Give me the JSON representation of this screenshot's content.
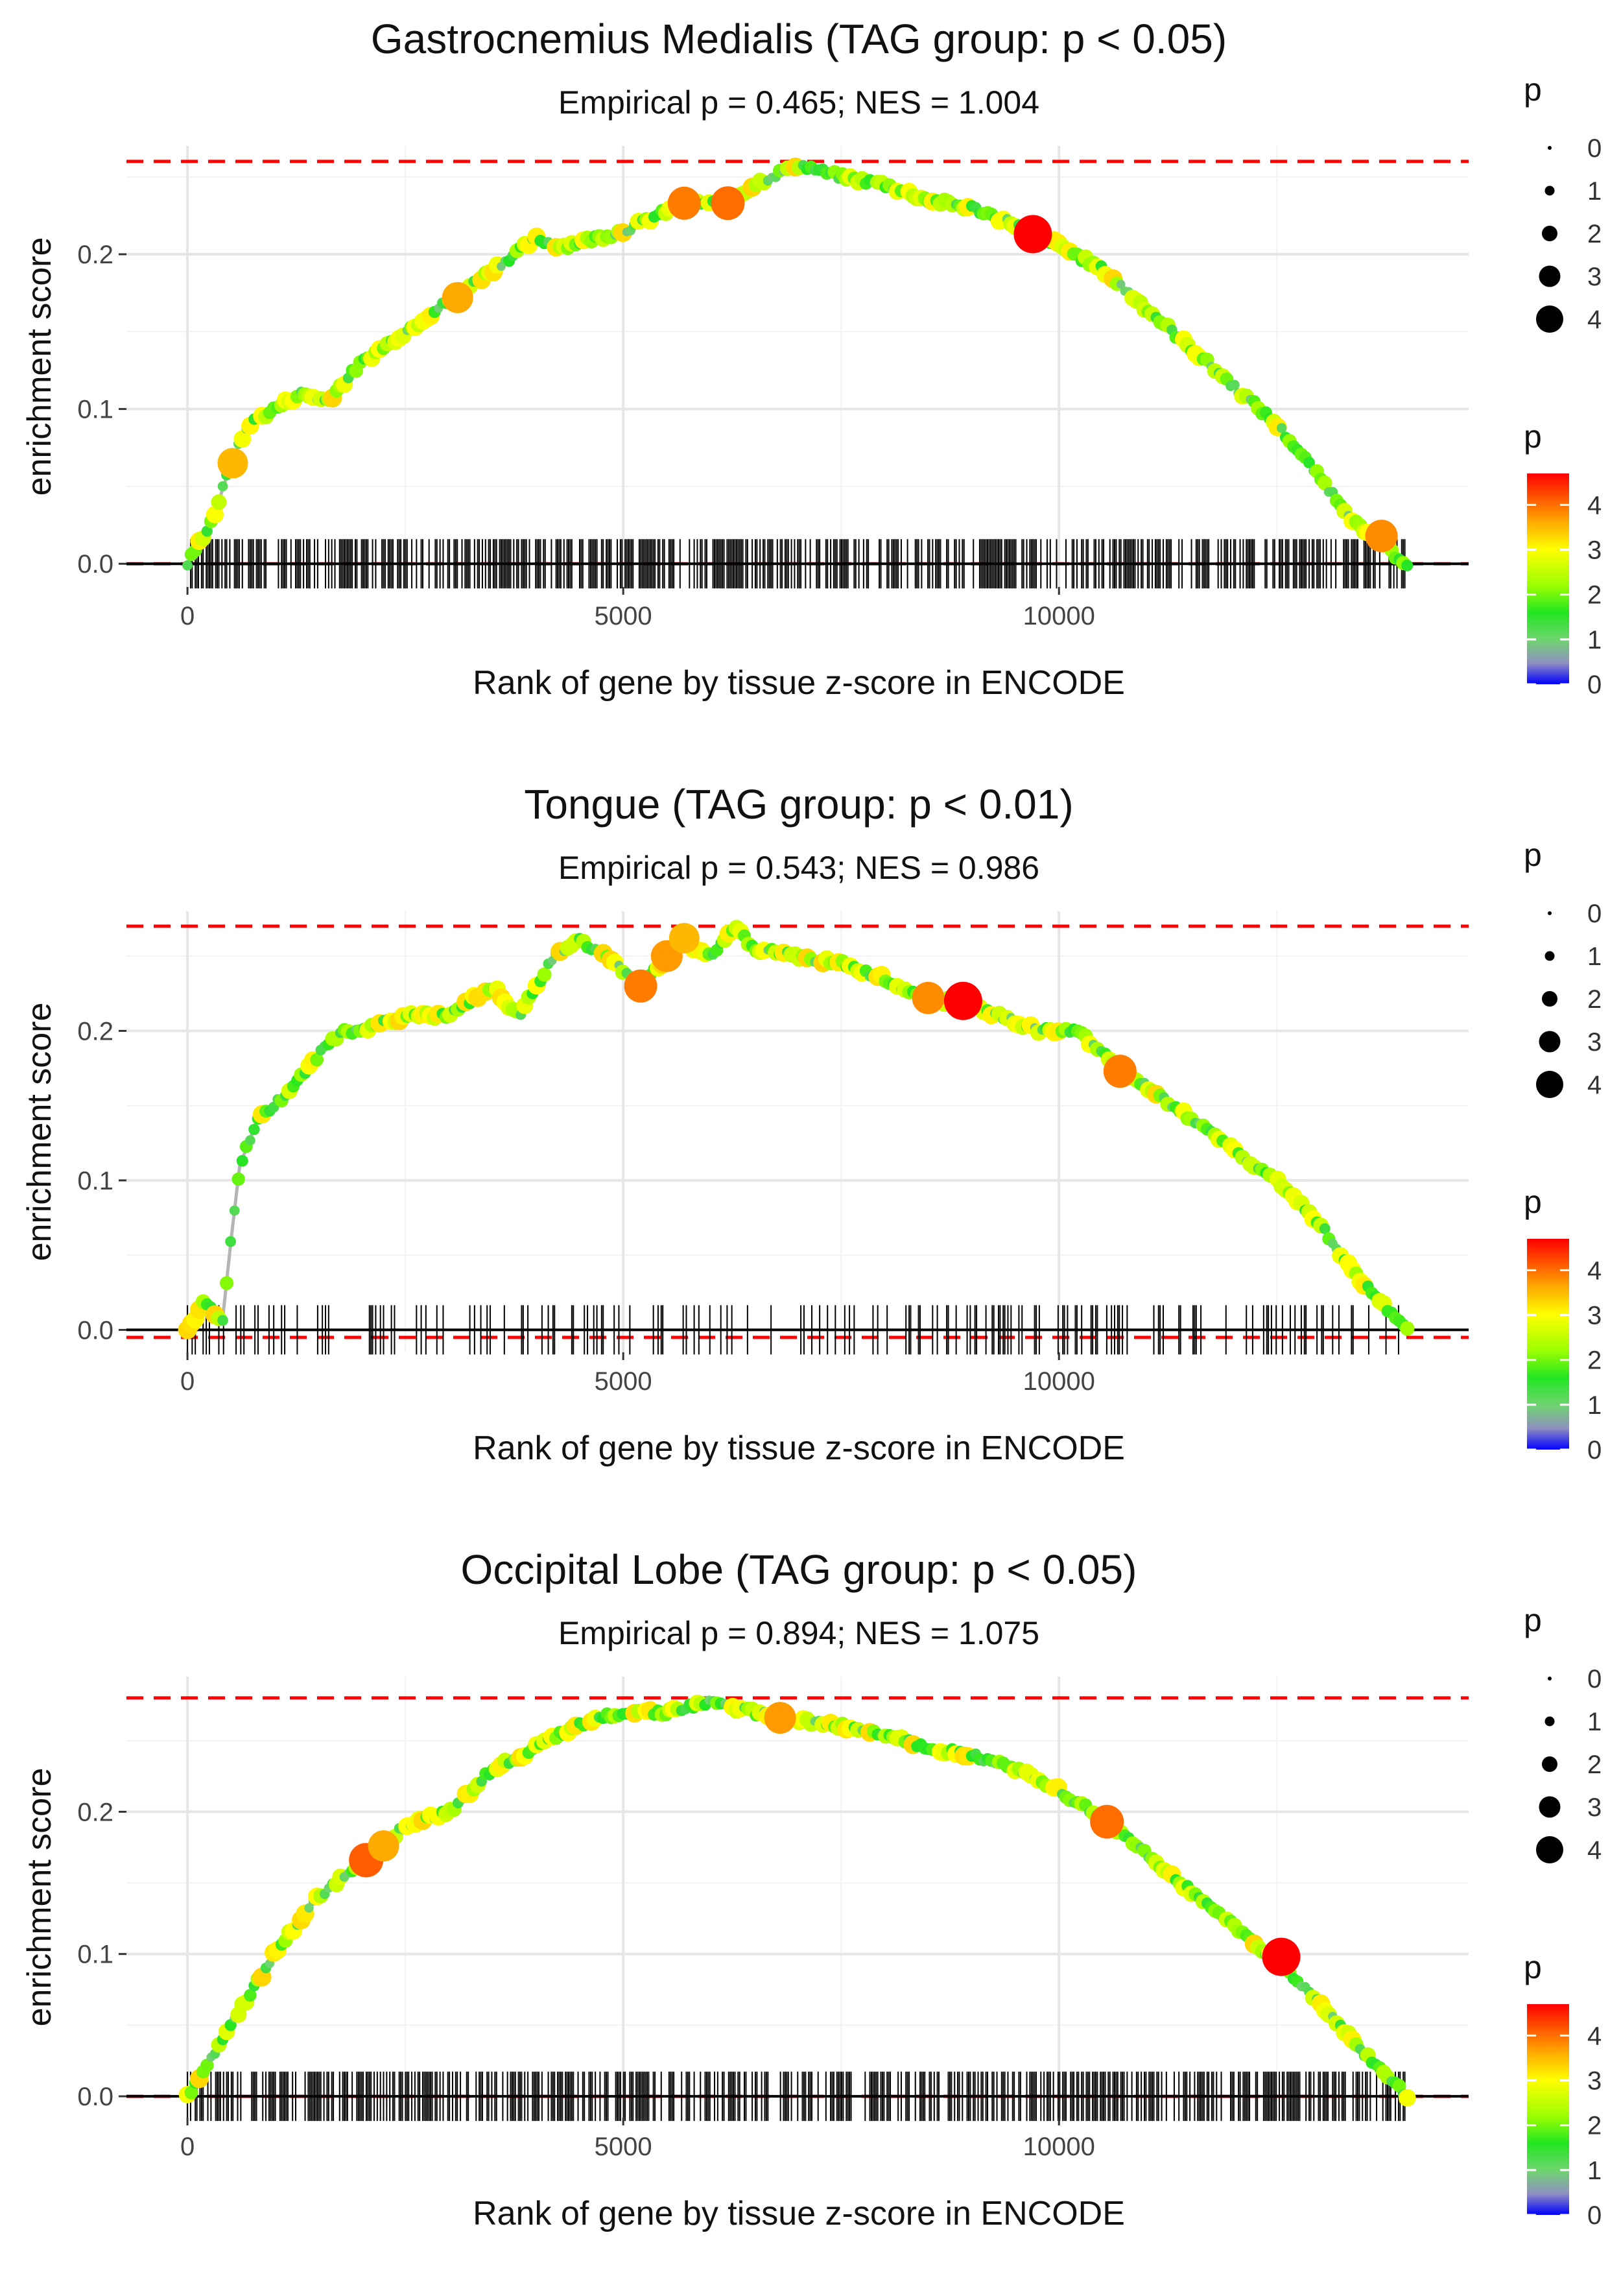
{
  "chart_data": [
    {
      "type": "line",
      "title": "Gastrocnemius Medialis (TAG group: p < 0.05)",
      "subtitle": "Empirical p = 0.465; NES = 1.004",
      "xlabel": "Rank of gene by tissue z-score in ENCODE",
      "ylabel": "enrichment score",
      "xlim": [
        -700,
        14700
      ],
      "ylim": [
        -0.015,
        0.27
      ],
      "x_ticks": [
        0,
        5000,
        10000
      ],
      "y_ticks": [
        0.0,
        0.1,
        0.2
      ],
      "x_tick_labels": [
        "0",
        "5000",
        "10000"
      ],
      "y_tick_labels": [
        "0.0",
        "0.1",
        "0.2"
      ],
      "max_es_line": 0.26,
      "min_es_line": 0.0,
      "rug_range": [
        0,
        14000
      ],
      "rug_density": 1,
      "x": [
        0,
        300,
        500,
        700,
        1000,
        1300,
        1600,
        2000,
        2500,
        3000,
        3500,
        4000,
        4300,
        5000,
        5700,
        6200,
        6500,
        7000,
        7500,
        8000,
        8500,
        9000,
        9700,
        10500,
        11500,
        12500,
        13500,
        14000
      ],
      "y": [
        0.0,
        0.03,
        0.065,
        0.09,
        0.1,
        0.11,
        0.105,
        0.13,
        0.15,
        0.17,
        0.19,
        0.21,
        0.205,
        0.215,
        0.233,
        0.233,
        0.245,
        0.258,
        0.25,
        0.245,
        0.235,
        0.23,
        0.215,
        0.19,
        0.14,
        0.09,
        0.02,
        0.0
      ],
      "highlight_points": [
        {
          "x": 520,
          "y": 0.065,
          "p": 3.5
        },
        {
          "x": 3100,
          "y": 0.172,
          "p": 3.6
        },
        {
          "x": 5700,
          "y": 0.233,
          "p": 3.9
        },
        {
          "x": 6200,
          "y": 0.233,
          "p": 4.0
        },
        {
          "x": 9700,
          "y": 0.213,
          "p": 4.7
        },
        {
          "x": 13700,
          "y": 0.018,
          "p": 3.8
        }
      ],
      "size_legend": {
        "title": "p",
        "labels": [
          "0",
          "1",
          "2",
          "3",
          "4"
        ]
      },
      "color_legend": {
        "title": "p",
        "labels": [
          "4",
          "3",
          "2",
          "1",
          "0"
        ]
      }
    },
    {
      "type": "line",
      "title": "Tongue (TAG group: p < 0.01)",
      "subtitle": "Empirical p = 0.543; NES = 0.986",
      "xlabel": "Rank of gene by tissue z-score in ENCODE",
      "ylabel": "enrichment score",
      "xlim": [
        -700,
        14700
      ],
      "ylim": [
        -0.015,
        0.28
      ],
      "x_ticks": [
        0,
        5000,
        10000
      ],
      "y_ticks": [
        0.0,
        0.1,
        0.2
      ],
      "x_tick_labels": [
        "0",
        "5000",
        "10000"
      ],
      "y_tick_labels": [
        "0.0",
        "0.1",
        "0.2"
      ],
      "max_es_line": 0.27,
      "min_es_line": -0.005,
      "rug_range": [
        0,
        14000
      ],
      "rug_density": 0.4,
      "x": [
        0,
        200,
        400,
        500,
        600,
        800,
        1000,
        1300,
        1600,
        1800,
        2000,
        2500,
        3000,
        3500,
        3800,
        4200,
        4500,
        4800,
        5200,
        5500,
        5700,
        6000,
        6300,
        6500,
        7000,
        7500,
        8000,
        8500,
        8900,
        9300,
        9800,
        10200,
        10700,
        11300,
        12000,
        12500,
        13000,
        13500,
        14000
      ],
      "y": [
        0.0,
        0.02,
        0.005,
        0.06,
        0.11,
        0.14,
        0.15,
        0.17,
        0.19,
        0.2,
        0.2,
        0.21,
        0.21,
        0.23,
        0.21,
        0.25,
        0.26,
        0.25,
        0.23,
        0.25,
        0.26,
        0.25,
        0.27,
        0.255,
        0.25,
        0.245,
        0.235,
        0.22,
        0.22,
        0.21,
        0.2,
        0.2,
        0.175,
        0.15,
        0.12,
        0.1,
        0.07,
        0.03,
        0.0
      ],
      "highlight_points": [
        {
          "x": 5200,
          "y": 0.23,
          "p": 3.9
        },
        {
          "x": 5500,
          "y": 0.25,
          "p": 3.7
        },
        {
          "x": 5700,
          "y": 0.262,
          "p": 3.5
        },
        {
          "x": 8500,
          "y": 0.222,
          "p": 3.8
        },
        {
          "x": 8900,
          "y": 0.22,
          "p": 4.7
        },
        {
          "x": 10700,
          "y": 0.173,
          "p": 3.9
        }
      ],
      "size_legend": {
        "title": "p",
        "labels": [
          "0",
          "1",
          "2",
          "3",
          "4"
        ]
      },
      "color_legend": {
        "title": "p",
        "labels": [
          "4",
          "3",
          "2",
          "1",
          "0"
        ]
      }
    },
    {
      "type": "line",
      "title": "Occipital Lobe (TAG group: p < 0.05)",
      "subtitle": "Empirical p = 0.894; NES = 1.075",
      "xlabel": "Rank of gene by tissue z-score in ENCODE",
      "ylabel": "enrichment score",
      "xlim": [
        -700,
        14700
      ],
      "ylim": [
        -0.015,
        0.295
      ],
      "x_ticks": [
        0,
        5000,
        10000
      ],
      "y_ticks": [
        0.0,
        0.1,
        0.2
      ],
      "x_tick_labels": [
        "0",
        "5000",
        "10000"
      ],
      "y_tick_labels": [
        "0.0",
        "0.1",
        "0.2"
      ],
      "max_es_line": 0.28,
      "min_es_line": 0.0,
      "rug_range": [
        0,
        14000
      ],
      "rug_density": 1,
      "x": [
        0,
        500,
        1000,
        1500,
        2000,
        2500,
        3000,
        3500,
        4000,
        4500,
        5000,
        5500,
        6000,
        6500,
        7000,
        7500,
        8000,
        8500,
        9000,
        9500,
        10000,
        10500,
        11000,
        11500,
        12000,
        12500,
        13000,
        13500,
        14000
      ],
      "y": [
        0.0,
        0.05,
        0.1,
        0.14,
        0.165,
        0.19,
        0.2,
        0.23,
        0.245,
        0.262,
        0.27,
        0.27,
        0.277,
        0.27,
        0.265,
        0.26,
        0.255,
        0.245,
        0.24,
        0.23,
        0.215,
        0.195,
        0.17,
        0.145,
        0.12,
        0.095,
        0.065,
        0.03,
        0.0
      ],
      "highlight_points": [
        {
          "x": 2050,
          "y": 0.166,
          "p": 4.1
        },
        {
          "x": 2250,
          "y": 0.176,
          "p": 3.6
        },
        {
          "x": 6800,
          "y": 0.266,
          "p": 3.7
        },
        {
          "x": 10550,
          "y": 0.193,
          "p": 4.0
        },
        {
          "x": 12550,
          "y": 0.098,
          "p": 4.7
        }
      ],
      "size_legend": {
        "title": "p",
        "labels": [
          "0",
          "1",
          "2",
          "3",
          "4"
        ]
      },
      "color_legend": {
        "title": "p",
        "labels": [
          "4",
          "3",
          "2",
          "1",
          "0"
        ]
      }
    }
  ]
}
